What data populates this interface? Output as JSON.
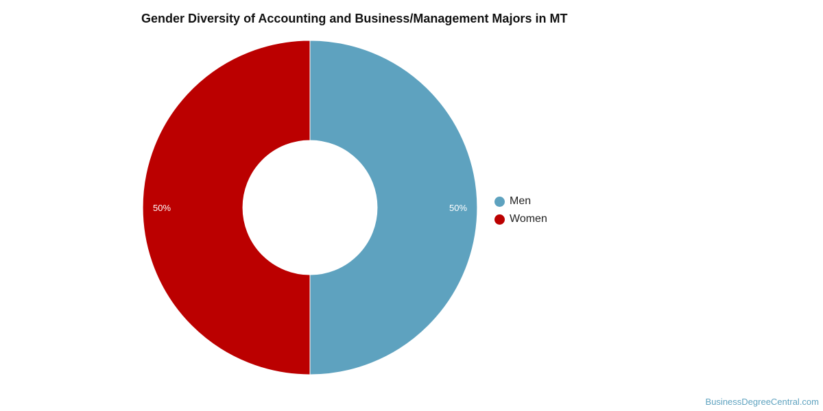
{
  "chart_data": {
    "type": "pie",
    "style": "donut",
    "title": "Gender Diversity of Accounting and Business/Management Majors in MT",
    "slices": [
      {
        "label": "Men",
        "value": 50,
        "value_label": "50%",
        "color": "#5ea2bf"
      },
      {
        "label": "Women",
        "value": 50,
        "value_label": "50%",
        "color": "#bb0000"
      }
    ],
    "legend_position": "right"
  },
  "footer": {
    "source": "BusinessDegreeCentral.com"
  }
}
